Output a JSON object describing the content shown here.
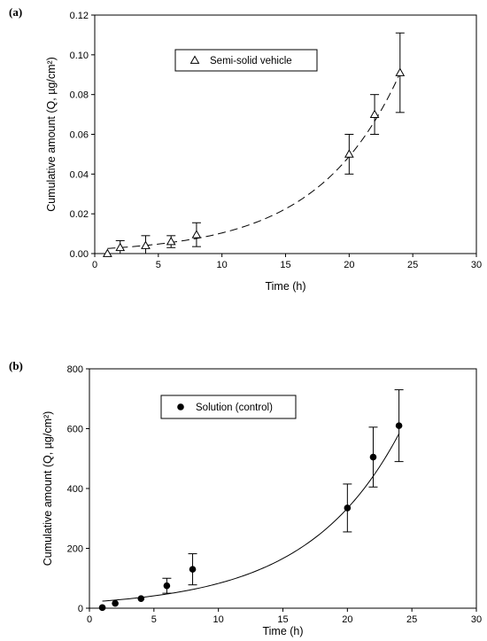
{
  "chart_data": [
    {
      "type": "scatter",
      "panel_label": "(a)",
      "xlabel": "Time (h)",
      "ylabel": "Cumulative amount (Q, µg/cm²)",
      "xlim": [
        0,
        30
      ],
      "ylim": [
        0,
        0.12
      ],
      "xticks": [
        "0",
        "5",
        "10",
        "15",
        "20",
        "25",
        "30"
      ],
      "yticks": [
        "0.00",
        "0.02",
        "0.04",
        "0.06",
        "0.08",
        "0.10",
        "0.12"
      ],
      "legend_position": "top-center",
      "fit_line": "dashed",
      "marker": "open-triangle",
      "series": [
        {
          "name": "Semi-solid vehicle",
          "x": [
            1,
            2,
            4,
            6,
            8,
            20,
            22,
            24
          ],
          "y": [
            0.0,
            0.003,
            0.004,
            0.006,
            0.0095,
            0.05,
            0.07,
            0.091
          ],
          "err": [
            0.0,
            0.0035,
            0.005,
            0.003,
            0.006,
            0.01,
            0.01,
            0.02
          ]
        }
      ],
      "fit": {
        "a": 0.0022,
        "k": 0.155
      }
    },
    {
      "type": "scatter",
      "panel_label": "(b)",
      "xlabel": "Time (h)",
      "ylabel": "Cumulative amount (Q, µg/cm²)",
      "xlim": [
        0,
        30
      ],
      "ylim": [
        0,
        800
      ],
      "xticks": [
        "0",
        "5",
        "10",
        "15",
        "20",
        "25",
        "30"
      ],
      "yticks": [
        "0",
        "200",
        "400",
        "600",
        "800"
      ],
      "legend_position": "top-left",
      "fit_line": "solid",
      "marker": "filled-circle",
      "series": [
        {
          "name": "Solution (control)",
          "x": [
            1,
            2,
            4,
            6,
            8,
            20,
            22,
            24
          ],
          "y": [
            2,
            16,
            32,
            75,
            130,
            335,
            505,
            610
          ],
          "err": [
            0,
            0,
            0,
            25,
            52,
            80,
            100,
            120
          ]
        }
      ],
      "fit": {
        "a": 20.5,
        "k": 0.1395
      }
    }
  ]
}
